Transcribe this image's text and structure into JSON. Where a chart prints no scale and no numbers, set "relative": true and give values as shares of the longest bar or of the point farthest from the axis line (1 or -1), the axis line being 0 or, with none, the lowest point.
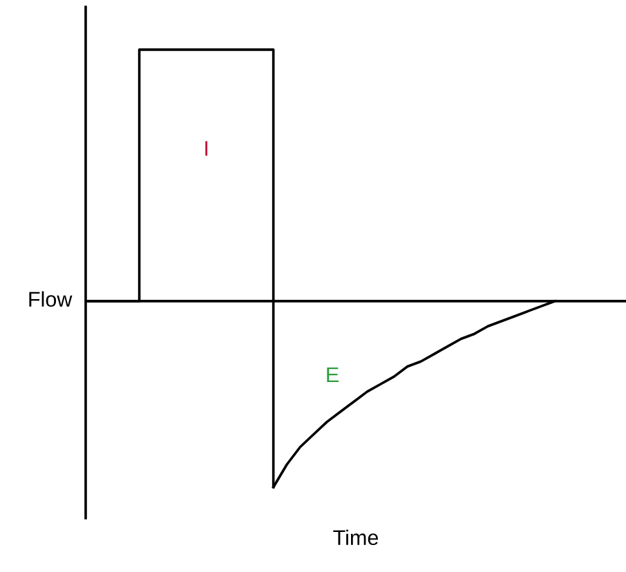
{
  "chart_data": {
    "type": "line",
    "relative": true,
    "xlabel": "Time",
    "ylabel": "Flow",
    "annotations": [
      "I",
      "E"
    ],
    "categories": [
      null,
      null,
      null,
      null,
      null,
      null,
      null,
      null,
      null,
      null,
      null,
      null,
      null,
      null,
      null,
      null,
      null,
      null,
      null,
      null,
      null,
      null,
      null,
      null,
      null,
      null,
      null,
      null,
      null,
      null,
      null,
      null,
      null,
      null,
      null,
      null,
      null,
      null,
      null,
      null,
      null
    ],
    "series": [
      {
        "type": "step",
        "color": "#000000",
        "values": [
          0,
          0,
          0,
          0,
          1,
          1,
          1,
          1,
          1,
          1,
          1,
          1,
          1,
          1,
          -0.74,
          null,
          null,
          null,
          null,
          null,
          null,
          null,
          null,
          null,
          null,
          null,
          null,
          null,
          null,
          null,
          null,
          null,
          null,
          null,
          null,
          null,
          null,
          null,
          null,
          null,
          null
        ]
      },
      {
        "color": "#000000",
        "values": [
          null,
          null,
          null,
          null,
          null,
          null,
          null,
          null,
          null,
          null,
          null,
          null,
          null,
          null,
          -0.74,
          -0.65,
          -0.58,
          -0.53,
          -0.48,
          -0.44,
          -0.4,
          -0.36,
          -0.33,
          -0.3,
          -0.26,
          -0.24,
          -0.21,
          -0.18,
          -0.15,
          -0.13,
          -0.1,
          -0.08,
          -0.06,
          -0.04,
          -0.02,
          0,
          null,
          null,
          null,
          null,
          null
        ]
      }
    ],
    "legend": false,
    "marker": "none",
    "line_style": "solid"
  }
}
